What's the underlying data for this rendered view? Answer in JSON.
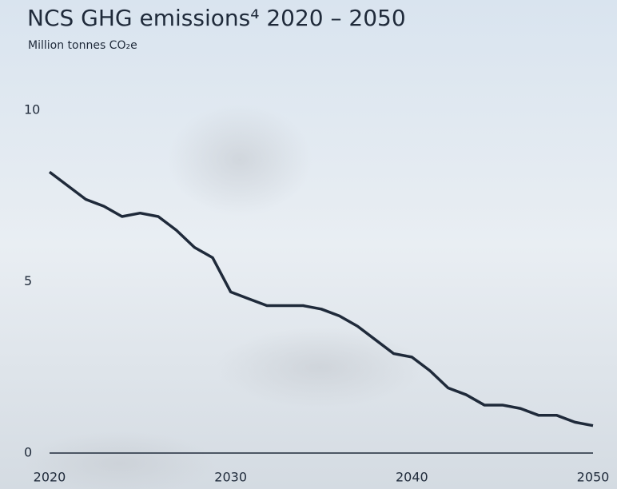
{
  "chart_data": {
    "type": "line",
    "title": "NCS GHG emissions⁴ 2020 – 2050",
    "subtitle": "Million tonnes CO₂e",
    "x": [
      2020,
      2021,
      2022,
      2023,
      2024,
      2025,
      2026,
      2027,
      2028,
      2029,
      2030,
      2031,
      2032,
      2033,
      2034,
      2035,
      2036,
      2037,
      2038,
      2039,
      2040,
      2041,
      2042,
      2043,
      2044,
      2045,
      2046,
      2047,
      2048,
      2049,
      2050
    ],
    "values": [
      8.2,
      7.8,
      7.4,
      7.2,
      6.9,
      7.0,
      6.9,
      6.5,
      6.0,
      5.7,
      4.7,
      4.5,
      4.3,
      4.3,
      4.3,
      4.2,
      4.0,
      3.7,
      3.3,
      2.9,
      2.8,
      2.4,
      1.9,
      1.7,
      1.4,
      1.4,
      1.3,
      1.1,
      1.1,
      0.9,
      0.8
    ],
    "color": "#1f2a3a",
    "xlim": [
      2020,
      2050
    ],
    "xticks": [
      2020,
      2030,
      2040,
      2050
    ],
    "ylim": [
      0,
      10
    ],
    "yticks": [
      0,
      5,
      10
    ],
    "grid": false
  }
}
